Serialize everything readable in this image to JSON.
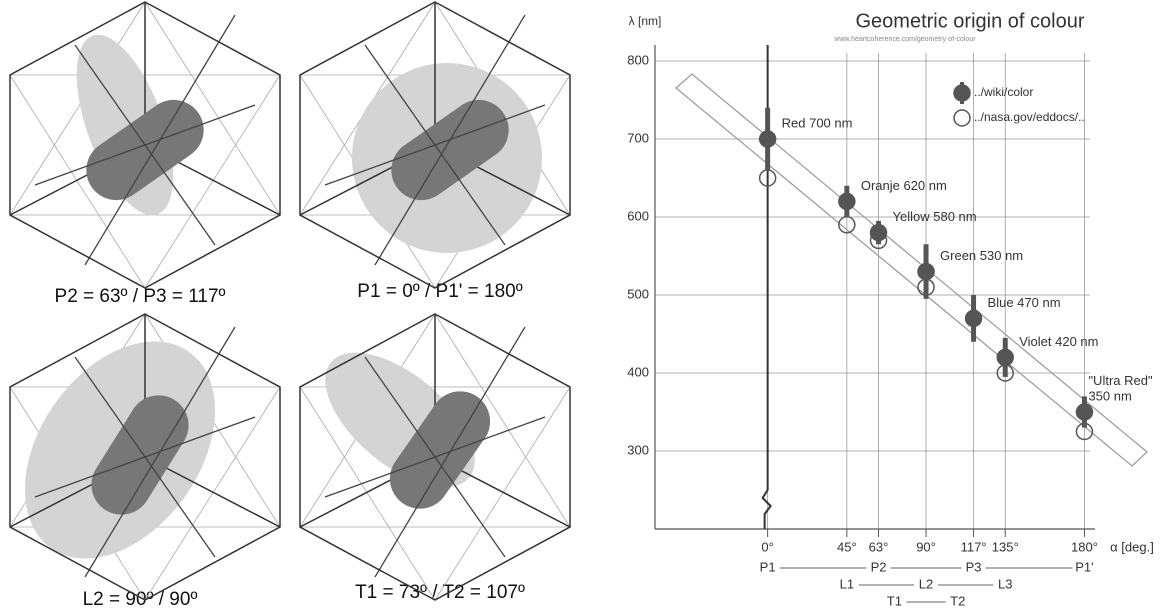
{
  "diagrams": [
    {
      "caption": "P2 = 63º / P3 = 117º"
    },
    {
      "caption": "P1 = 0º / P1' = 180º"
    },
    {
      "caption": "L2 = 90º / 90º"
    },
    {
      "caption": "T1 = 73º / T2 = 107º"
    }
  ],
  "chart_data": {
    "type": "scatter",
    "title": "Geometric origin of colour",
    "subtitle": "www.heartcoherence.com/geometry-of-colour",
    "y_label": "λ [nm]",
    "x_label": "α [deg.]",
    "x": [
      0,
      45,
      63,
      90,
      117,
      135,
      180
    ],
    "series": [
      {
        "name": "../wiki/color",
        "color": "#555555",
        "marker": "filled",
        "values": [
          700,
          620,
          580,
          530,
          470,
          420,
          350
        ],
        "errors": [
          40,
          20,
          15,
          35,
          30,
          25,
          20
        ],
        "value_labels": [
          "Red 700 nm",
          "Oranje 620 nm",
          "Yellow 580 nm",
          "Green 530 nm",
          "Blue 470 nm",
          "Violet 420 nm",
          "\"Ultra Red\"\n350 nm"
        ]
      },
      {
        "name": "../nasa.gov/eddocs/..",
        "color": "#555555",
        "marker": "open",
        "values": [
          650,
          590,
          570,
          510,
          null,
          400,
          325
        ]
      }
    ],
    "xlim": [
      -64,
      186
    ],
    "ylim": [
      200,
      800
    ],
    "xticks": [
      {
        "value": 0,
        "label": "0°"
      },
      {
        "value": 45,
        "label": "45°"
      },
      {
        "value": 63,
        "label": "63°"
      },
      {
        "value": 90,
        "label": "90°"
      },
      {
        "value": 117,
        "label": "117°"
      },
      {
        "value": 135,
        "label": "135°"
      },
      {
        "value": 180,
        "label": "180°"
      }
    ],
    "yticks": [
      300,
      400,
      500,
      600,
      700,
      800
    ],
    "grid": true,
    "legend": "top-right",
    "angle_rows": [
      [
        "P1",
        "P2",
        "P3",
        "P1'"
      ],
      [
        "L1",
        "L2",
        "L3"
      ],
      [
        "T1",
        "T2"
      ]
    ]
  }
}
